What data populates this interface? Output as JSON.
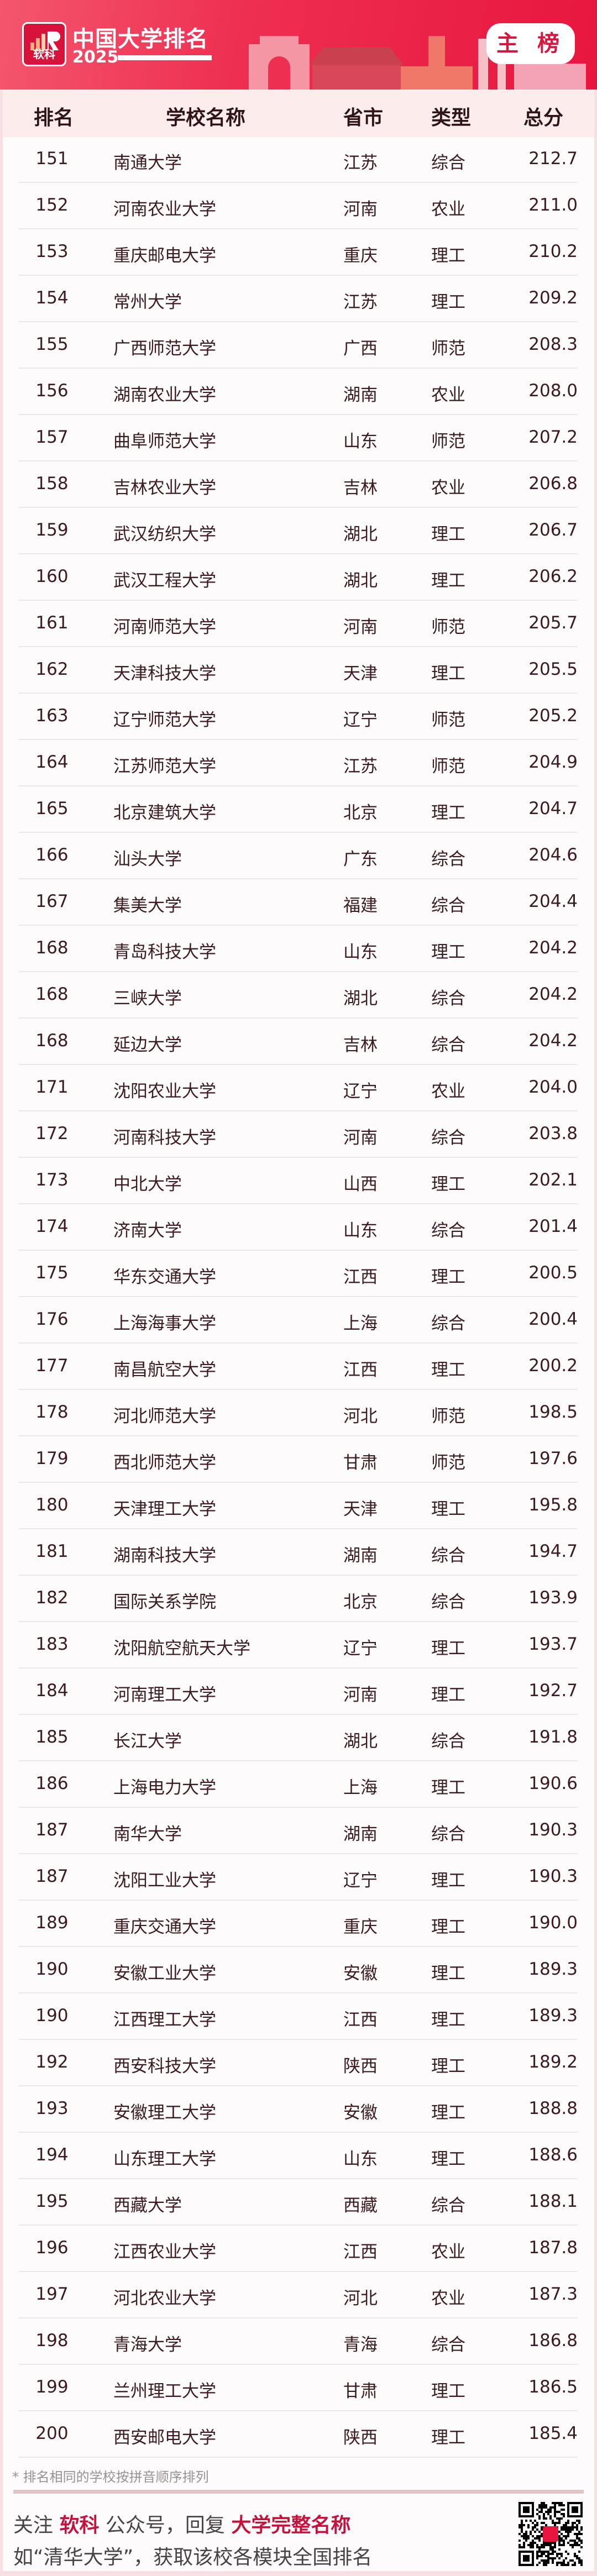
{
  "header": {
    "logo_text": "软科",
    "title": "中国大学排名",
    "year": "2025",
    "badge": "主 榜",
    "brand_color": "#e8163f"
  },
  "table": {
    "columns": [
      "排名",
      "学校名称",
      "省市",
      "类型",
      "总分"
    ],
    "rows": [
      [
        "151",
        "南通大学",
        "江苏",
        "综合",
        "212.7"
      ],
      [
        "152",
        "河南农业大学",
        "河南",
        "农业",
        "211.0"
      ],
      [
        "153",
        "重庆邮电大学",
        "重庆",
        "理工",
        "210.2"
      ],
      [
        "154",
        "常州大学",
        "江苏",
        "理工",
        "209.2"
      ],
      [
        "155",
        "广西师范大学",
        "广西",
        "师范",
        "208.3"
      ],
      [
        "156",
        "湖南农业大学",
        "湖南",
        "农业",
        "208.0"
      ],
      [
        "157",
        "曲阜师范大学",
        "山东",
        "师范",
        "207.2"
      ],
      [
        "158",
        "吉林农业大学",
        "吉林",
        "农业",
        "206.8"
      ],
      [
        "159",
        "武汉纺织大学",
        "湖北",
        "理工",
        "206.7"
      ],
      [
        "160",
        "武汉工程大学",
        "湖北",
        "理工",
        "206.2"
      ],
      [
        "161",
        "河南师范大学",
        "河南",
        "师范",
        "205.7"
      ],
      [
        "162",
        "天津科技大学",
        "天津",
        "理工",
        "205.5"
      ],
      [
        "163",
        "辽宁师范大学",
        "辽宁",
        "师范",
        "205.2"
      ],
      [
        "164",
        "江苏师范大学",
        "江苏",
        "师范",
        "204.9"
      ],
      [
        "165",
        "北京建筑大学",
        "北京",
        "理工",
        "204.7"
      ],
      [
        "166",
        "汕头大学",
        "广东",
        "综合",
        "204.6"
      ],
      [
        "167",
        "集美大学",
        "福建",
        "综合",
        "204.4"
      ],
      [
        "168",
        "青岛科技大学",
        "山东",
        "理工",
        "204.2"
      ],
      [
        "168",
        "三峡大学",
        "湖北",
        "综合",
        "204.2"
      ],
      [
        "168",
        "延边大学",
        "吉林",
        "综合",
        "204.2"
      ],
      [
        "171",
        "沈阳农业大学",
        "辽宁",
        "农业",
        "204.0"
      ],
      [
        "172",
        "河南科技大学",
        "河南",
        "综合",
        "203.8"
      ],
      [
        "173",
        "中北大学",
        "山西",
        "理工",
        "202.1"
      ],
      [
        "174",
        "济南大学",
        "山东",
        "综合",
        "201.4"
      ],
      [
        "175",
        "华东交通大学",
        "江西",
        "理工",
        "200.5"
      ],
      [
        "176",
        "上海海事大学",
        "上海",
        "综合",
        "200.4"
      ],
      [
        "177",
        "南昌航空大学",
        "江西",
        "理工",
        "200.2"
      ],
      [
        "178",
        "河北师范大学",
        "河北",
        "师范",
        "198.5"
      ],
      [
        "179",
        "西北师范大学",
        "甘肃",
        "师范",
        "197.6"
      ],
      [
        "180",
        "天津理工大学",
        "天津",
        "理工",
        "195.8"
      ],
      [
        "181",
        "湖南科技大学",
        "湖南",
        "综合",
        "194.7"
      ],
      [
        "182",
        "国际关系学院",
        "北京",
        "综合",
        "193.9"
      ],
      [
        "183",
        "沈阳航空航天大学",
        "辽宁",
        "理工",
        "193.7"
      ],
      [
        "184",
        "河南理工大学",
        "河南",
        "理工",
        "192.7"
      ],
      [
        "185",
        "长江大学",
        "湖北",
        "综合",
        "191.8"
      ],
      [
        "186",
        "上海电力大学",
        "上海",
        "理工",
        "190.6"
      ],
      [
        "187",
        "南华大学",
        "湖南",
        "综合",
        "190.3"
      ],
      [
        "187",
        "沈阳工业大学",
        "辽宁",
        "理工",
        "190.3"
      ],
      [
        "189",
        "重庆交通大学",
        "重庆",
        "理工",
        "190.0"
      ],
      [
        "190",
        "安徽工业大学",
        "安徽",
        "理工",
        "189.3"
      ],
      [
        "190",
        "江西理工大学",
        "江西",
        "理工",
        "189.3"
      ],
      [
        "192",
        "西安科技大学",
        "陕西",
        "理工",
        "189.2"
      ],
      [
        "193",
        "安徽理工大学",
        "安徽",
        "理工",
        "188.8"
      ],
      [
        "194",
        "山东理工大学",
        "山东",
        "理工",
        "188.6"
      ],
      [
        "195",
        "西藏大学",
        "西藏",
        "综合",
        "188.1"
      ],
      [
        "196",
        "江西农业大学",
        "江西",
        "农业",
        "187.8"
      ],
      [
        "197",
        "河北农业大学",
        "河北",
        "农业",
        "187.3"
      ],
      [
        "198",
        "青海大学",
        "青海",
        "综合",
        "186.8"
      ],
      [
        "199",
        "兰州理工大学",
        "甘肃",
        "理工",
        "186.5"
      ],
      [
        "200",
        "西安邮电大学",
        "陕西",
        "理工",
        "185.4"
      ]
    ]
  },
  "footer": {
    "note": "* 排名相同的学校按拼音顺序排列",
    "line1_a": "关注 ",
    "line1_brand": "软科",
    "line1_b": " 公众号，回复 ",
    "line1_keyword": "大学完整名称",
    "line2": "如“清华大学”，获取该校各模块全国排名",
    "qr_icon": "qr-code"
  }
}
